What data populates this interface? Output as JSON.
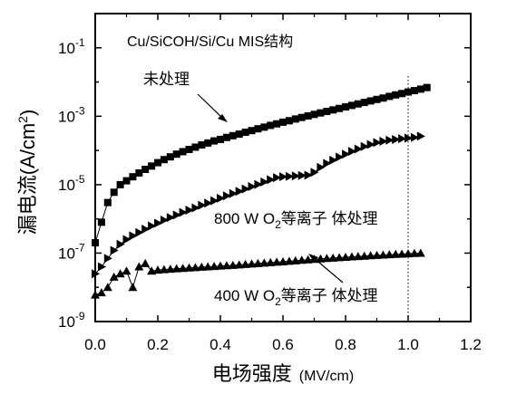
{
  "chart_data": {
    "type": "scatter",
    "title": "Cu/SiCOH/Si/Cu MIS结构",
    "xlabel": "电场强度（MV/cm）",
    "xlabel_main": "电场强度",
    "xlabel_unit": "(MV/cm)",
    "ylabel": "漏电流(A/cm²)",
    "ylabel_main": "漏电流(A/cm",
    "ylabel_sup": "2",
    "ylabel_close": ")",
    "xlim": [
      0.0,
      1.2
    ],
    "ylim_log10": [
      -9,
      0
    ],
    "y_scale": "log",
    "grid": false,
    "x_ticks": [
      0.0,
      0.2,
      0.4,
      0.6,
      0.8,
      1.0,
      1.2
    ],
    "x_tick_labels": [
      "0.0",
      "0.2",
      "0.4",
      "0.6",
      "0.8",
      "1.0",
      "1.2"
    ],
    "y_tick_exponents": [
      -1,
      -3,
      -5,
      -7,
      -9
    ],
    "y_tick_base": "10",
    "y_tick_labels": [
      "-1",
      "-3",
      "-5",
      "-7",
      "-9"
    ],
    "reference_line_x": 1.0,
    "series": [
      {
        "name": "未处理",
        "marker": "square",
        "x": [
          0.0,
          0.02,
          0.04,
          0.06,
          0.08,
          0.1,
          0.12,
          0.14,
          0.16,
          0.18,
          0.2,
          0.22,
          0.24,
          0.26,
          0.28,
          0.3,
          0.32,
          0.34,
          0.36,
          0.38,
          0.4,
          0.42,
          0.44,
          0.46,
          0.48,
          0.5,
          0.52,
          0.54,
          0.56,
          0.58,
          0.6,
          0.62,
          0.64,
          0.66,
          0.68,
          0.7,
          0.72,
          0.74,
          0.76,
          0.78,
          0.8,
          0.82,
          0.84,
          0.86,
          0.88,
          0.9,
          0.92,
          0.94,
          0.96,
          0.98,
          1.0,
          1.02,
          1.04,
          1.06
        ],
        "y": [
          2e-07,
          8e-07,
          3e-06,
          6e-06,
          1e-05,
          1.3e-05,
          1.7e-05,
          2.2e-05,
          2.8e-05,
          3.5e-05,
          4.4e-05,
          5.4e-05,
          6.5e-05,
          7.8e-05,
          9.2e-05,
          0.000107,
          0.000125,
          0.000145,
          0.000165,
          0.00019,
          0.00021,
          0.00024,
          0.00027,
          0.0003,
          0.00034,
          0.00038,
          0.00043,
          0.00048,
          0.00054,
          0.0006,
          0.00067,
          0.00074,
          0.00083,
          0.00092,
          0.00102,
          0.00113,
          0.00125,
          0.00138,
          0.00153,
          0.00169,
          0.00187,
          0.00207,
          0.00229,
          0.00253,
          0.0028,
          0.0031,
          0.0034,
          0.0038,
          0.0042,
          0.0046,
          0.0051,
          0.0056,
          0.0062,
          0.0069
        ]
      },
      {
        "name": "800 W O₂等离子 体处理",
        "label_main": "800 W O",
        "label_sub": "2",
        "label_tail": "等离子  体处理",
        "marker": "triangle-right",
        "x": [
          0.0,
          0.02,
          0.04,
          0.06,
          0.08,
          0.1,
          0.12,
          0.14,
          0.16,
          0.18,
          0.2,
          0.22,
          0.24,
          0.26,
          0.28,
          0.3,
          0.32,
          0.34,
          0.36,
          0.38,
          0.4,
          0.42,
          0.44,
          0.46,
          0.48,
          0.5,
          0.52,
          0.54,
          0.56,
          0.58,
          0.6,
          0.62,
          0.64,
          0.66,
          0.68,
          0.7,
          0.72,
          0.74,
          0.76,
          0.78,
          0.8,
          0.82,
          0.84,
          0.86,
          0.88,
          0.9,
          0.92,
          0.94,
          0.96,
          0.98,
          1.0,
          1.02,
          1.04
        ],
        "y": [
          2.5e-08,
          4e-08,
          7e-08,
          1.2e-07,
          1.8e-07,
          2.5e-07,
          3.2e-07,
          4e-07,
          5e-07,
          6.2e-07,
          7.5e-07,
          9.2e-07,
          1.1e-06,
          1.3e-06,
          1.55e-06,
          1.8e-06,
          2.1e-06,
          2.5e-06,
          2.9e-06,
          3.4e-06,
          4e-06,
          4.7e-06,
          5.5e-06,
          6.4e-06,
          7.5e-06,
          8.8e-06,
          1.02e-05,
          1.2e-05,
          1.4e-05,
          1.6e-05,
          1.7e-05,
          1.75e-05,
          1.8e-05,
          1.85e-05,
          1.9e-05,
          2.3e-05,
          3.2e-05,
          4.2e-05,
          5.2e-05,
          6.4e-05,
          7.8e-05,
          9.4e-05,
          0.00011,
          0.00013,
          0.00015,
          0.00017,
          0.000185,
          0.0002,
          0.00021,
          0.00022,
          0.00023,
          0.00024,
          0.00026
        ]
      },
      {
        "name": "400 W O₂等离子 体处理",
        "label_main": "400 W O",
        "label_sub": "2",
        "label_tail": "等离子  体处理",
        "marker": "triangle-up",
        "x": [
          0.0,
          0.02,
          0.04,
          0.06,
          0.08,
          0.1,
          0.12,
          0.14,
          0.16,
          0.18,
          0.2,
          0.22,
          0.24,
          0.26,
          0.28,
          0.3,
          0.32,
          0.34,
          0.36,
          0.38,
          0.4,
          0.42,
          0.44,
          0.46,
          0.48,
          0.5,
          0.52,
          0.54,
          0.56,
          0.58,
          0.6,
          0.62,
          0.64,
          0.66,
          0.68,
          0.7,
          0.72,
          0.74,
          0.76,
          0.78,
          0.8,
          0.82,
          0.84,
          0.86,
          0.88,
          0.9,
          0.92,
          0.94,
          0.96,
          0.98,
          1.0,
          1.02,
          1.04
        ],
        "y": [
          6e-09,
          7e-09,
          1e-08,
          2e-08,
          2.5e-08,
          3e-08,
          1e-08,
          4e-08,
          5e-08,
          3e-08,
          3.2e-08,
          3.3e-08,
          3.4e-08,
          3.5e-08,
          3.6e-08,
          3.7e-08,
          3.8e-08,
          3.9e-08,
          4e-08,
          4.1e-08,
          4.2e-08,
          4.3e-08,
          4.4e-08,
          4.55e-08,
          4.7e-08,
          4.85e-08,
          5e-08,
          5.15e-08,
          5.3e-08,
          5.45e-08,
          5.6e-08,
          5.8e-08,
          6e-08,
          6.2e-08,
          6.4e-08,
          6.6e-08,
          6.8e-08,
          7e-08,
          7.2e-08,
          7.4e-08,
          7.6e-08,
          7.8e-08,
          8e-08,
          8.2e-08,
          8.4e-08,
          8.6e-08,
          8.8e-08,
          9e-08,
          9.2e-08,
          9.4e-08,
          9.6e-08,
          9.8e-08,
          1e-07
        ]
      }
    ]
  }
}
